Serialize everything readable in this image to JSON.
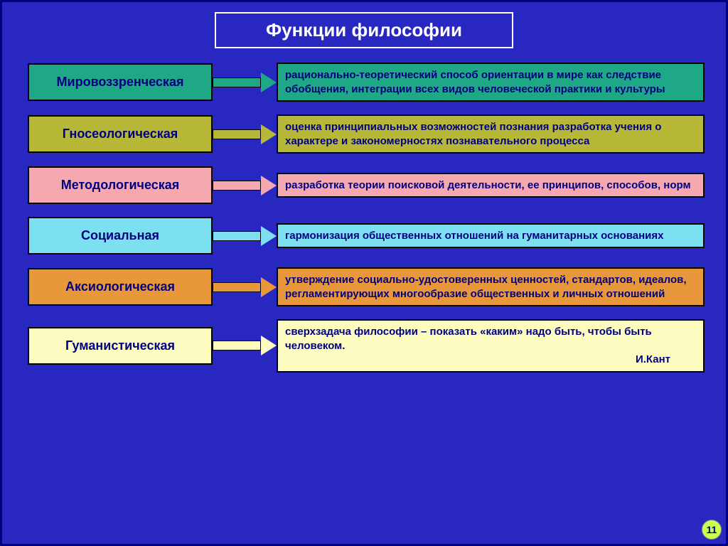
{
  "title": "Функции философии",
  "background": "#2828c0",
  "rows": [
    {
      "label": "Мировоззренческая",
      "label_bg": "#1ea886",
      "label_color": "#000080",
      "arrow_color": "#1ea886",
      "desc": "рационально-теоретический способ ориентации в мире как следствие обобщения, интеграции всех видов человеческой практики и культуры",
      "desc_bg": "#1ea886",
      "desc_color": "#000080",
      "attribution": ""
    },
    {
      "label": "Гносеологическая",
      "label_bg": "#b8b838",
      "label_color": "#000080",
      "arrow_color": "#b8b838",
      "desc": "оценка принципиальных возможностей познания разработка учения о характере и закономерностях познавательного процесса",
      "desc_bg": "#b8b838",
      "desc_color": "#000080",
      "attribution": ""
    },
    {
      "label": "Методологическая",
      "label_bg": "#f5a8b0",
      "label_color": "#000080",
      "arrow_color": "#f5a8b0",
      "desc": "разработка теории поисковой деятельности, ее принципов, способов,  норм",
      "desc_bg": "#f5a8b0",
      "desc_color": "#000080",
      "attribution": ""
    },
    {
      "label": "Социальная",
      "label_bg": "#7de0f0",
      "label_color": "#000080",
      "arrow_color": "#7de0f0",
      "desc": "гармонизация общественных отношений на гуманитарных основаниях",
      "desc_bg": "#7de0f0",
      "desc_color": "#000080",
      "attribution": ""
    },
    {
      "label": "Аксиологическая",
      "label_bg": "#e8983a",
      "label_color": "#000080",
      "arrow_color": "#e8983a",
      "desc": "утверждение социально-удостоверенных ценностей, стандартов, идеалов, регламентирующих многообразие общественных и личных отношений",
      "desc_bg": "#e8983a",
      "desc_color": "#000080",
      "attribution": ""
    },
    {
      "label": "Гуманистическая",
      "label_bg": "#fdfcc0",
      "label_color": "#000080",
      "arrow_color": "#fdfcc0",
      "desc": "сверхзадача философии – показать «каким» надо быть, чтобы быть человеком.",
      "desc_bg": "#fdfcc0",
      "desc_color": "#000080",
      "attribution": "И.Кант"
    }
  ],
  "page_number": "11",
  "styling": {
    "title_fontsize": 26,
    "label_fontsize": 18,
    "desc_fontsize": 15,
    "label_width": 260,
    "arrow_width": 90,
    "row_gap": 18,
    "border_color": "#000000",
    "title_border_color": "#ffffff",
    "title_text_color": "#ffffff",
    "page_num_bg": "#c8ff50"
  }
}
